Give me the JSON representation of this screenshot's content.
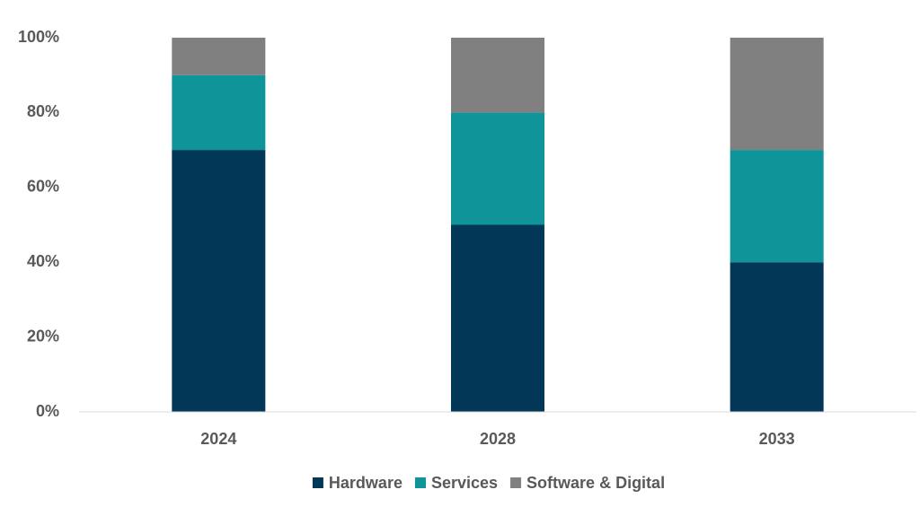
{
  "chart_data": {
    "type": "stacked_bar",
    "categories": [
      "2024",
      "2028",
      "2033"
    ],
    "series": [
      {
        "name": "Hardware",
        "color": "#023757",
        "values": [
          70,
          50,
          40
        ]
      },
      {
        "name": "Services",
        "color": "#0e9499",
        "values": [
          20,
          30,
          30
        ]
      },
      {
        "name": "Software & Digital",
        "color": "#808080",
        "values": [
          10,
          20,
          30
        ]
      }
    ],
    "ylim": [
      0,
      100
    ],
    "yticks": [
      {
        "value": 0,
        "label": "0%"
      },
      {
        "value": 20,
        "label": "20%"
      },
      {
        "value": 40,
        "label": "40%"
      },
      {
        "value": 60,
        "label": "60%"
      },
      {
        "value": 80,
        "label": "80%"
      },
      {
        "value": 100,
        "label": "100%"
      }
    ],
    "grid": false,
    "legend": "bottom"
  }
}
